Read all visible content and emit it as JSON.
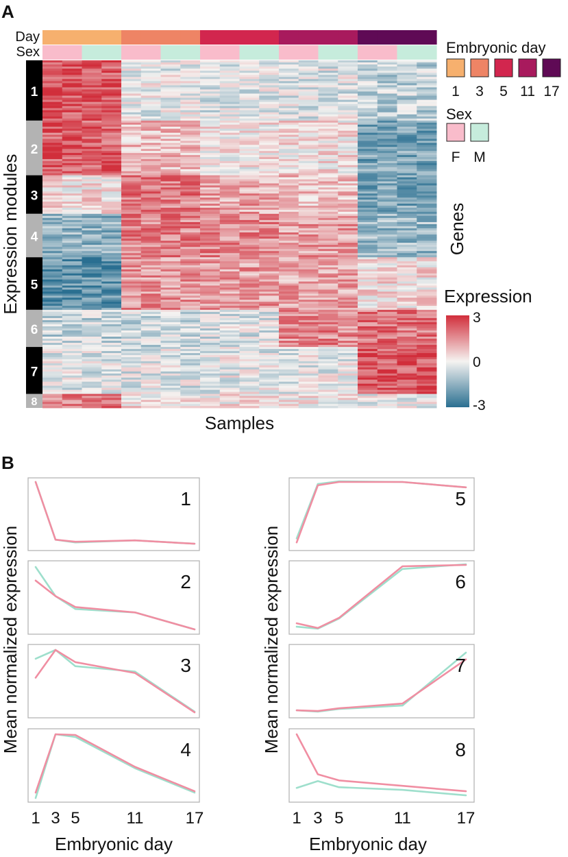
{
  "chart_data": [
    {
      "panel": "A",
      "type": "heatmap",
      "xlabel": "Samples",
      "ylabel": "Expression modules",
      "right_label": "Genes",
      "column_annotations": {
        "day": {
          "label": "Day",
          "values": [
            "1",
            "1",
            "1",
            "1",
            "3",
            "3",
            "3",
            "3",
            "5",
            "5",
            "5",
            "5",
            "11",
            "11",
            "11",
            "11",
            "17",
            "17",
            "17",
            "17"
          ]
        },
        "sex": {
          "label": "Sex",
          "values": [
            "F",
            "F",
            "M",
            "M",
            "F",
            "F",
            "M",
            "M",
            "F",
            "F",
            "M",
            "M",
            "F",
            "F",
            "M",
            "M",
            "F",
            "F",
            "M",
            "M"
          ]
        }
      },
      "modules": [
        {
          "label": "1",
          "weight": 86,
          "mean_by_day": [
            2.4,
            -0.2,
            -0.3,
            -0.3,
            -0.8
          ]
        },
        {
          "label": "2",
          "weight": 78,
          "mean_by_day": [
            2.3,
            0.8,
            0.2,
            0.3,
            -1.8
          ]
        },
        {
          "label": "3",
          "weight": 55,
          "mean_by_day": [
            0.3,
            1.8,
            1.2,
            0.8,
            -1.8
          ]
        },
        {
          "label": "4",
          "weight": 62,
          "mean_by_day": [
            -1.4,
            1.7,
            1.6,
            1.3,
            -1.3
          ]
        },
        {
          "label": "5",
          "weight": 75,
          "mean_by_day": [
            -2.2,
            1.4,
            1.3,
            1.2,
            0.3
          ]
        },
        {
          "label": "6",
          "weight": 53,
          "mean_by_day": [
            -0.7,
            -0.6,
            -0.4,
            1.6,
            1.9
          ]
        },
        {
          "label": "7",
          "weight": 67,
          "mean_by_day": [
            -0.3,
            -0.3,
            -0.2,
            -0.2,
            2.4
          ]
        },
        {
          "label": "8",
          "weight": 20,
          "mean_by_day": [
            1.8,
            0.3,
            0.2,
            0.1,
            -0.2
          ]
        }
      ],
      "legend": {
        "day_title": "Embryonic day",
        "days": [
          {
            "label": "1",
            "color": "#f6b06e"
          },
          {
            "label": "3",
            "color": "#ee8465"
          },
          {
            "label": "5",
            "color": "#d2264e"
          },
          {
            "label": "11",
            "color": "#a81a5d"
          },
          {
            "label": "17",
            "color": "#5f0a55"
          }
        ],
        "sex_title": "Sex",
        "sexes": [
          {
            "label": "F",
            "color": "#f9bccb"
          },
          {
            "label": "M",
            "color": "#c6ecdc"
          }
        ],
        "expression_title": "Expression",
        "scale_min": -3,
        "scale_max": 3,
        "scale_ticks": [
          "3",
          "0",
          "-3"
        ],
        "colors": {
          "low": "#2a6f91",
          "mid": "#f5f3f1",
          "high": "#d12e3b"
        }
      }
    },
    {
      "panel": "B",
      "type": "line",
      "xlabel": "Embryonic day",
      "ylabel": "Mean normalized expression",
      "x": [
        1,
        3,
        5,
        11,
        17
      ],
      "xticks": [
        "1",
        "3",
        "5",
        "11",
        "17"
      ],
      "ylim": [
        0,
        1
      ],
      "series_colors": {
        "F": "#f08ea2",
        "M": "#9edfcc"
      },
      "panels": [
        {
          "label": "1",
          "series": [
            {
              "name": "F",
              "values": [
                0.98,
                0.12,
                0.09,
                0.11,
                0.06
              ]
            },
            {
              "name": "M",
              "values": [
                0.98,
                0.12,
                0.08,
                0.11,
                0.06
              ]
            }
          ]
        },
        {
          "label": "2",
          "series": [
            {
              "name": "F",
              "values": [
                0.75,
                0.52,
                0.36,
                0.28,
                0.03
              ]
            },
            {
              "name": "M",
              "values": [
                0.95,
                0.52,
                0.33,
                0.28,
                0.03
              ]
            }
          ]
        },
        {
          "label": "3",
          "series": [
            {
              "name": "F",
              "values": [
                0.55,
                0.96,
                0.78,
                0.62,
                0.04
              ]
            },
            {
              "name": "M",
              "values": [
                0.83,
                0.96,
                0.72,
                0.64,
                0.05
              ]
            }
          ]
        },
        {
          "label": "4",
          "series": [
            {
              "name": "F",
              "values": [
                0.1,
                0.96,
                0.95,
                0.48,
                0.12
              ]
            },
            {
              "name": "M",
              "values": [
                0.02,
                0.96,
                0.92,
                0.46,
                0.1
              ]
            }
          ]
        },
        {
          "label": "5",
          "series": [
            {
              "name": "F",
              "values": [
                0.08,
                0.93,
                0.98,
                0.98,
                0.9
              ]
            },
            {
              "name": "M",
              "values": [
                0.14,
                0.95,
                0.99,
                0.98,
                0.9
              ]
            }
          ]
        },
        {
          "label": "6",
          "series": [
            {
              "name": "F",
              "values": [
                0.12,
                0.05,
                0.2,
                0.96,
                0.98
              ]
            },
            {
              "name": "M",
              "values": [
                0.07,
                0.04,
                0.19,
                0.92,
                0.99
              ]
            }
          ]
        },
        {
          "label": "7",
          "series": [
            {
              "name": "F",
              "values": [
                0.07,
                0.06,
                0.1,
                0.17,
                0.82
              ]
            },
            {
              "name": "M",
              "values": [
                0.07,
                0.05,
                0.09,
                0.14,
                0.92
              ]
            }
          ]
        },
        {
          "label": "8",
          "series": [
            {
              "name": "F",
              "values": [
                0.96,
                0.37,
                0.28,
                0.2,
                0.12
              ]
            },
            {
              "name": "M",
              "values": [
                0.17,
                0.27,
                0.18,
                0.14,
                0.06
              ]
            }
          ]
        }
      ]
    }
  ],
  "panel_labels": {
    "a": "A",
    "b": "B"
  }
}
